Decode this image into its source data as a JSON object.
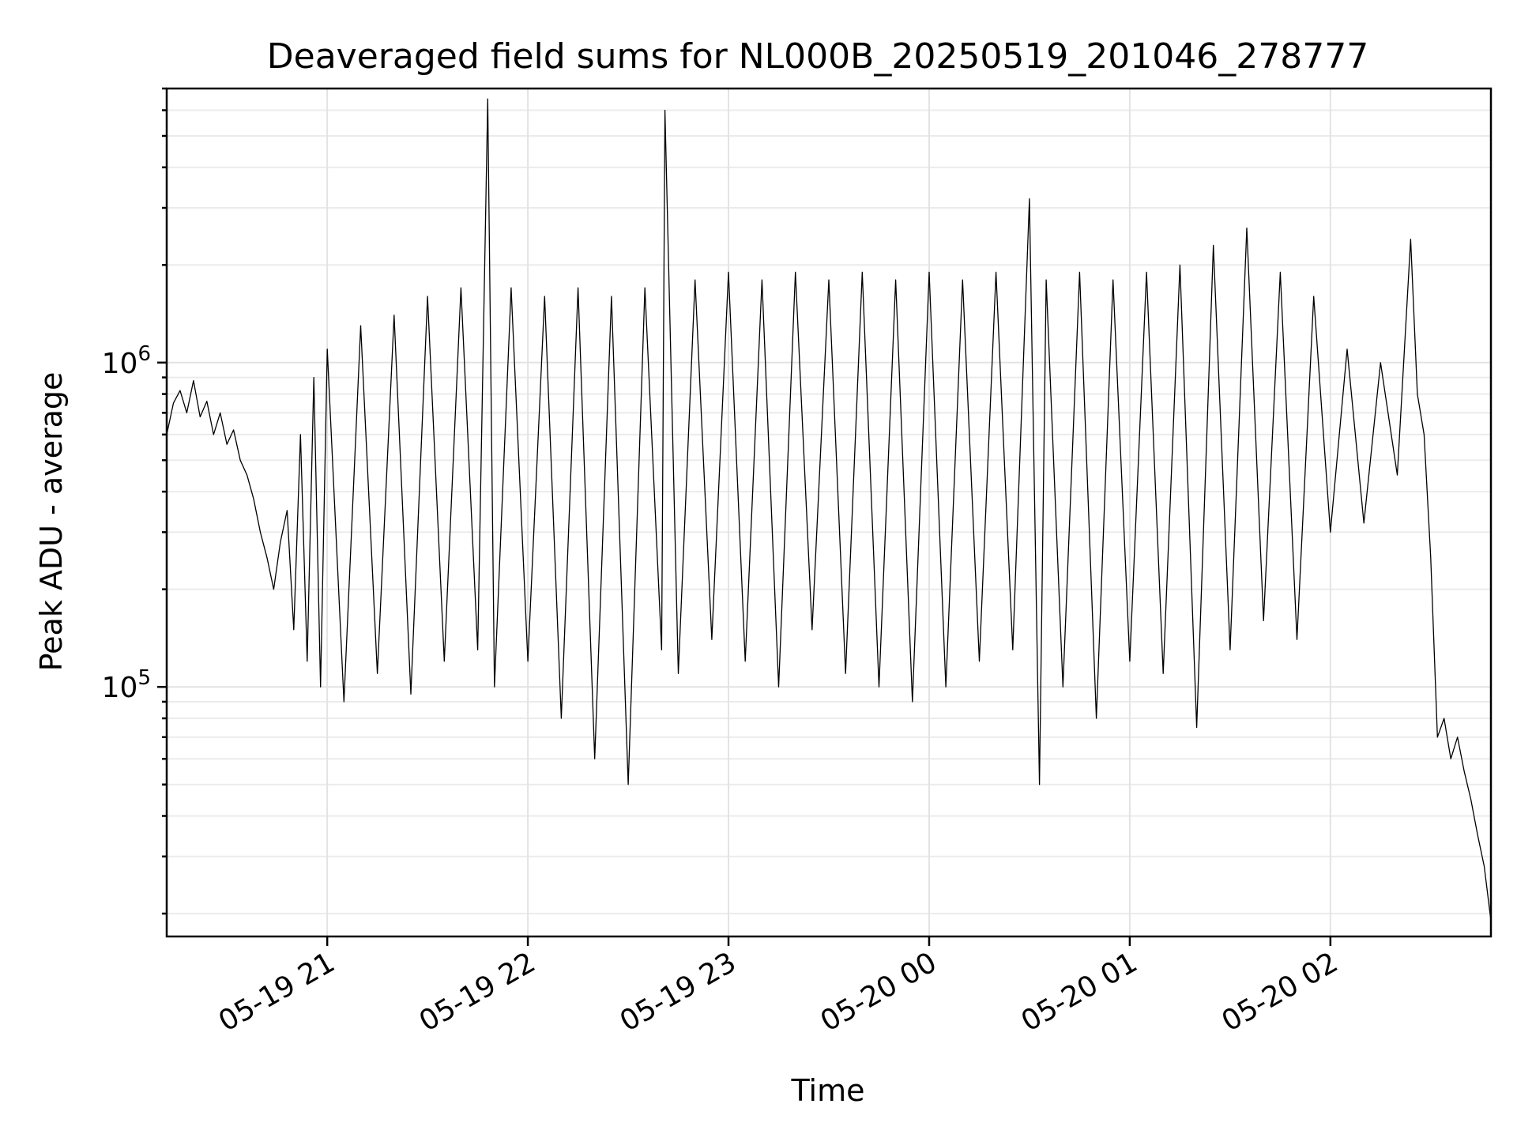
{
  "chart_data": {
    "type": "line",
    "title": "Deaveraged field sums for NL000B_20250519_201046_278777",
    "xlabel": "Time",
    "ylabel": "Peak ADU - average",
    "yscale": "log",
    "xlim": [
      "2025-05-19 20:12",
      "2025-05-20 02:48"
    ],
    "ylim": [
      17000,
      7000000
    ],
    "grid": true,
    "x_tick_labels": [
      "05-19 21",
      "05-19 22",
      "05-19 23",
      "05-20 00",
      "05-20 01",
      "05-20 02"
    ],
    "x_tick_values": [
      "2025-05-19 21:00",
      "2025-05-19 22:00",
      "2025-05-19 23:00",
      "2025-05-20 00:00",
      "2025-05-20 01:00",
      "2025-05-20 02:00"
    ],
    "y_tick_labels": [
      {
        "base": "10",
        "exp": "5",
        "value": 100000
      },
      {
        "base": "10",
        "exp": "6",
        "value": 1000000
      }
    ],
    "series": [
      {
        "color": "#000000",
        "points": [
          [
            "2025-05-19 20:12",
            600000
          ],
          [
            "2025-05-19 20:14",
            750000
          ],
          [
            "2025-05-19 20:16",
            820000
          ],
          [
            "2025-05-19 20:18",
            700000
          ],
          [
            "2025-05-19 20:20",
            880000
          ],
          [
            "2025-05-19 20:22",
            680000
          ],
          [
            "2025-05-19 20:24",
            760000
          ],
          [
            "2025-05-19 20:26",
            600000
          ],
          [
            "2025-05-19 20:28",
            700000
          ],
          [
            "2025-05-19 20:30",
            560000
          ],
          [
            "2025-05-19 20:32",
            620000
          ],
          [
            "2025-05-19 20:34",
            500000
          ],
          [
            "2025-05-19 20:36",
            450000
          ],
          [
            "2025-05-19 20:38",
            380000
          ],
          [
            "2025-05-19 20:40",
            300000
          ],
          [
            "2025-05-19 20:42",
            250000
          ],
          [
            "2025-05-19 20:44",
            200000
          ],
          [
            "2025-05-19 20:46",
            280000
          ],
          [
            "2025-05-19 20:48",
            350000
          ],
          [
            "2025-05-19 20:50",
            150000
          ],
          [
            "2025-05-19 20:52",
            600000
          ],
          [
            "2025-05-19 20:54",
            120000
          ],
          [
            "2025-05-19 20:56",
            900000
          ],
          [
            "2025-05-19 20:58",
            100000
          ],
          [
            "2025-05-19 21:00",
            1100000
          ],
          [
            "2025-05-19 21:05",
            90000
          ],
          [
            "2025-05-19 21:10",
            1300000
          ],
          [
            "2025-05-19 21:15",
            110000
          ],
          [
            "2025-05-19 21:20",
            1400000
          ],
          [
            "2025-05-19 21:25",
            95000
          ],
          [
            "2025-05-19 21:30",
            1600000
          ],
          [
            "2025-05-19 21:35",
            120000
          ],
          [
            "2025-05-19 21:40",
            1700000
          ],
          [
            "2025-05-19 21:45",
            130000
          ],
          [
            "2025-05-19 21:48",
            6500000
          ],
          [
            "2025-05-19 21:50",
            100000
          ],
          [
            "2025-05-19 21:55",
            1700000
          ],
          [
            "2025-05-19 22:00",
            120000
          ],
          [
            "2025-05-19 22:05",
            1600000
          ],
          [
            "2025-05-19 22:10",
            80000
          ],
          [
            "2025-05-19 22:15",
            1700000
          ],
          [
            "2025-05-19 22:20",
            60000
          ],
          [
            "2025-05-19 22:25",
            1600000
          ],
          [
            "2025-05-19 22:30",
            50000
          ],
          [
            "2025-05-19 22:35",
            1700000
          ],
          [
            "2025-05-19 22:40",
            130000
          ],
          [
            "2025-05-19 22:41",
            6000000
          ],
          [
            "2025-05-19 22:45",
            110000
          ],
          [
            "2025-05-19 22:50",
            1800000
          ],
          [
            "2025-05-19 22:55",
            140000
          ],
          [
            "2025-05-19 23:00",
            1900000
          ],
          [
            "2025-05-19 23:05",
            120000
          ],
          [
            "2025-05-19 23:10",
            1800000
          ],
          [
            "2025-05-19 23:15",
            100000
          ],
          [
            "2025-05-19 23:20",
            1900000
          ],
          [
            "2025-05-19 23:25",
            150000
          ],
          [
            "2025-05-19 23:30",
            1800000
          ],
          [
            "2025-05-19 23:35",
            110000
          ],
          [
            "2025-05-19 23:40",
            1900000
          ],
          [
            "2025-05-19 23:45",
            100000
          ],
          [
            "2025-05-19 23:50",
            1800000
          ],
          [
            "2025-05-19 23:55",
            90000
          ],
          [
            "2025-05-20 00:00",
            1900000
          ],
          [
            "2025-05-20 00:05",
            100000
          ],
          [
            "2025-05-20 00:10",
            1800000
          ],
          [
            "2025-05-20 00:15",
            120000
          ],
          [
            "2025-05-20 00:20",
            1900000
          ],
          [
            "2025-05-20 00:25",
            130000
          ],
          [
            "2025-05-20 00:30",
            3200000
          ],
          [
            "2025-05-20 00:33",
            50000
          ],
          [
            "2025-05-20 00:35",
            1800000
          ],
          [
            "2025-05-20 00:40",
            100000
          ],
          [
            "2025-05-20 00:45",
            1900000
          ],
          [
            "2025-05-20 00:50",
            80000
          ],
          [
            "2025-05-20 00:55",
            1800000
          ],
          [
            "2025-05-20 01:00",
            120000
          ],
          [
            "2025-05-20 01:05",
            1900000
          ],
          [
            "2025-05-20 01:10",
            110000
          ],
          [
            "2025-05-20 01:15",
            2000000
          ],
          [
            "2025-05-20 01:20",
            75000
          ],
          [
            "2025-05-20 01:25",
            2300000
          ],
          [
            "2025-05-20 01:30",
            130000
          ],
          [
            "2025-05-20 01:35",
            2600000
          ],
          [
            "2025-05-20 01:40",
            160000
          ],
          [
            "2025-05-20 01:45",
            1900000
          ],
          [
            "2025-05-20 01:50",
            140000
          ],
          [
            "2025-05-20 01:55",
            1600000
          ],
          [
            "2025-05-20 02:00",
            300000
          ],
          [
            "2025-05-20 02:05",
            1100000
          ],
          [
            "2025-05-20 02:10",
            320000
          ],
          [
            "2025-05-20 02:15",
            1000000
          ],
          [
            "2025-05-20 02:20",
            450000
          ],
          [
            "2025-05-20 02:24",
            2400000
          ],
          [
            "2025-05-20 02:26",
            800000
          ],
          [
            "2025-05-20 02:28",
            600000
          ],
          [
            "2025-05-20 02:30",
            250000
          ],
          [
            "2025-05-20 02:32",
            70000
          ],
          [
            "2025-05-20 02:34",
            80000
          ],
          [
            "2025-05-20 02:36",
            60000
          ],
          [
            "2025-05-20 02:38",
            70000
          ],
          [
            "2025-05-20 02:40",
            55000
          ],
          [
            "2025-05-20 02:42",
            45000
          ],
          [
            "2025-05-20 02:44",
            35000
          ],
          [
            "2025-05-20 02:46",
            28000
          ],
          [
            "2025-05-20 02:48",
            19000
          ]
        ]
      }
    ]
  }
}
